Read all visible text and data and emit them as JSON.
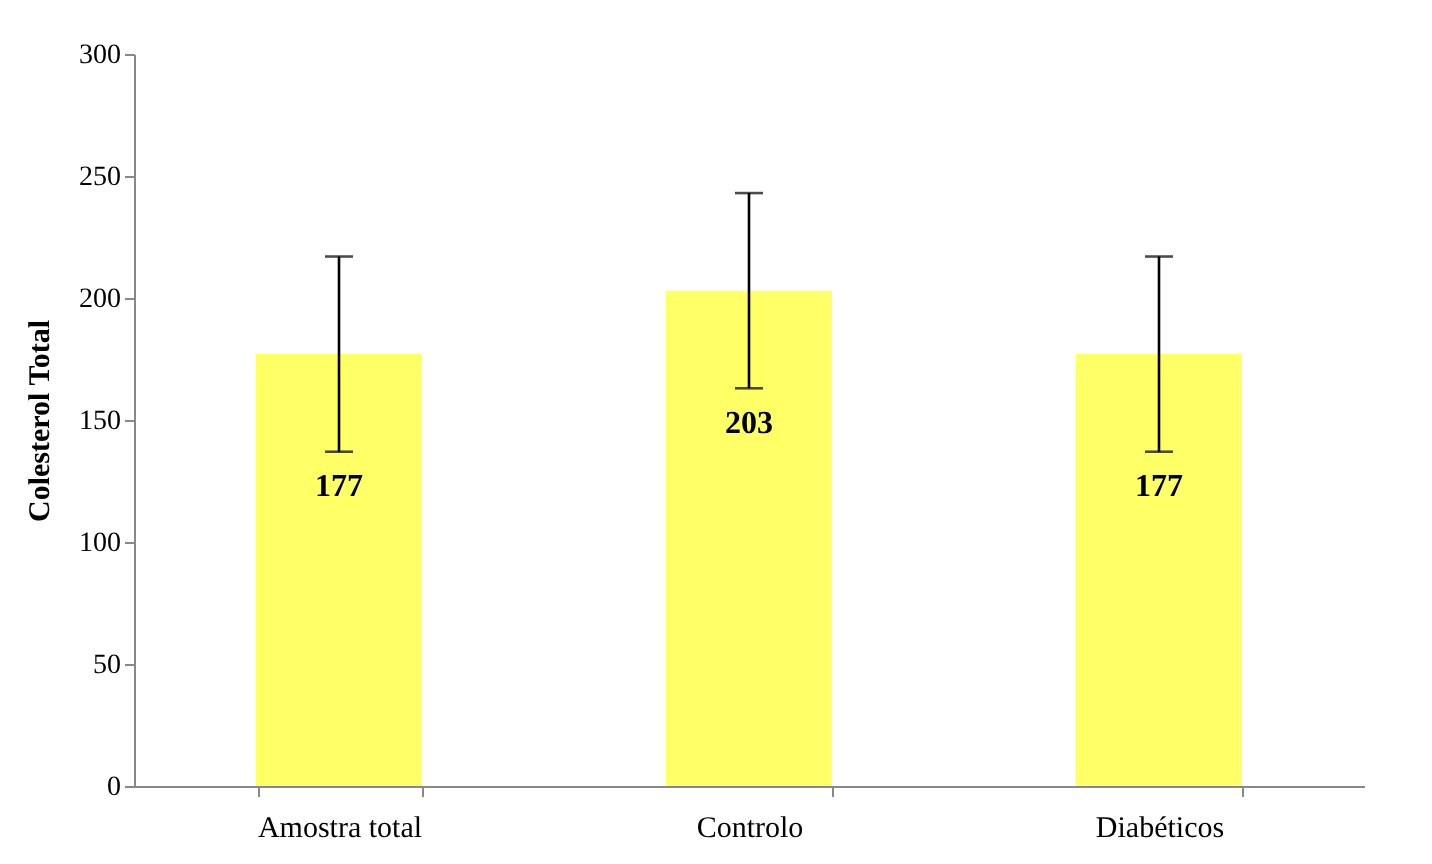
{
  "chart_data": {
    "type": "bar",
    "ylabel": "Colesterol Total",
    "categories": [
      "Amostra total",
      "Controlo",
      "Diabéticos"
    ],
    "values": [
      177,
      203,
      177
    ],
    "errors": [
      40,
      40,
      40
    ],
    "color": "#ffff66",
    "ylim": [
      0,
      300
    ],
    "yticks": [
      0,
      50,
      100,
      150,
      200,
      250,
      300
    ],
    "grid": false,
    "data_labels": true
  }
}
